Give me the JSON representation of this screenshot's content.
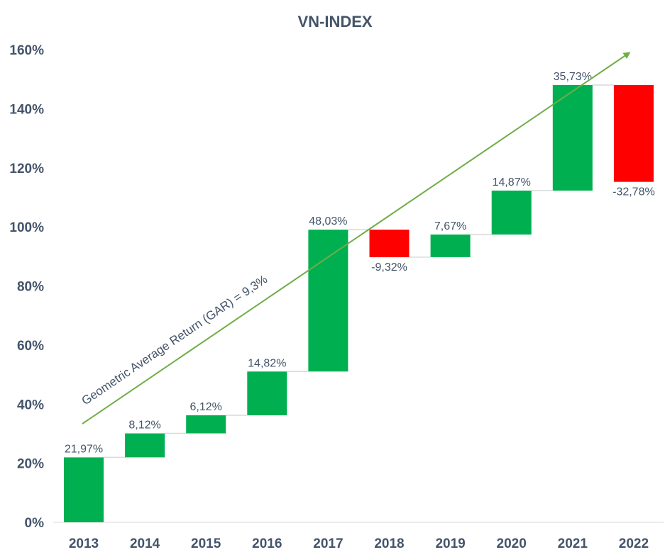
{
  "chart_data": {
    "type": "waterfall",
    "title": "VN-INDEX",
    "xlabel": "",
    "ylabel": "",
    "ylim": [
      0,
      160
    ],
    "y_ticks": [
      "0%",
      "20%",
      "40%",
      "60%",
      "80%",
      "100%",
      "120%",
      "140%",
      "160%"
    ],
    "categories": [
      "2013",
      "2014",
      "2015",
      "2016",
      "2017",
      "2018",
      "2019",
      "2020",
      "2021",
      "2022"
    ],
    "values": [
      21.97,
      8.12,
      6.12,
      14.82,
      48.03,
      -9.32,
      7.67,
      14.87,
      35.73,
      -32.78
    ],
    "labels": [
      "21,97%",
      "8,12%",
      "6,12%",
      "14,82%",
      "48,03%",
      "-9,32%",
      "7,67%",
      "14,87%",
      "35,73%",
      "-32,78%"
    ],
    "colors": {
      "increase": "#00b050",
      "decrease": "#ff0000",
      "connector": "#d9d9d9",
      "trend": "#70ad47",
      "text": "#44546a"
    },
    "grid": false,
    "legend": "none",
    "annotation": "Geometric Average Return (GAR)  = 9,3%"
  }
}
